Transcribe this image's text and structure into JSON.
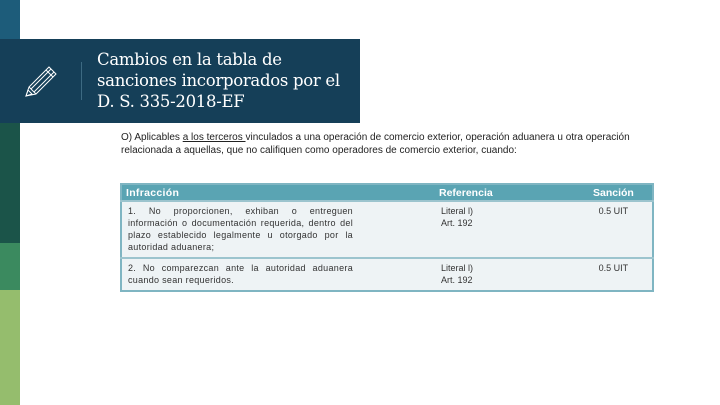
{
  "slide": {
    "title_lines": [
      "Cambios en la tabla de",
      "sanciones incorporados por el",
      "D. S. 335-2018-EF"
    ],
    "icon": "pencil-icon",
    "intro": {
      "prefix": "O) Aplicables ",
      "underlined": "a los terceros ",
      "suffix": "vinculados a una operación de comercio exterior, operación aduanera u otra operación relacionada a aquellas, que no califiquen como operadores de comercio exterior, cuando:"
    },
    "colors": {
      "header": "#153f58",
      "strip_top": "#1d5c7a",
      "strip_dark_green": "#1b5449",
      "strip_green": "#3b8a5f",
      "strip_light_green": "#95bd6d",
      "table_header": "#5aa4b3"
    }
  },
  "table": {
    "headers": [
      "Infracción",
      "Referencia",
      "Sanción"
    ],
    "rows": [
      {
        "infraccion": "1. No proporcionen, exhiban o entreguen información o documentación requerida, dentro del plazo establecido legalmente u otorgado por la autoridad aduanera;",
        "referencia_1": "Literal l)",
        "referencia_2": "Art. 192",
        "sancion": "0.5 UIT"
      },
      {
        "infraccion": "2. No comparezcan ante la autoridad aduanera cuando sean requeridos.",
        "referencia_1": "Literal l)",
        "referencia_2": "Art. 192",
        "sancion": "0.5 UIT"
      }
    ]
  }
}
